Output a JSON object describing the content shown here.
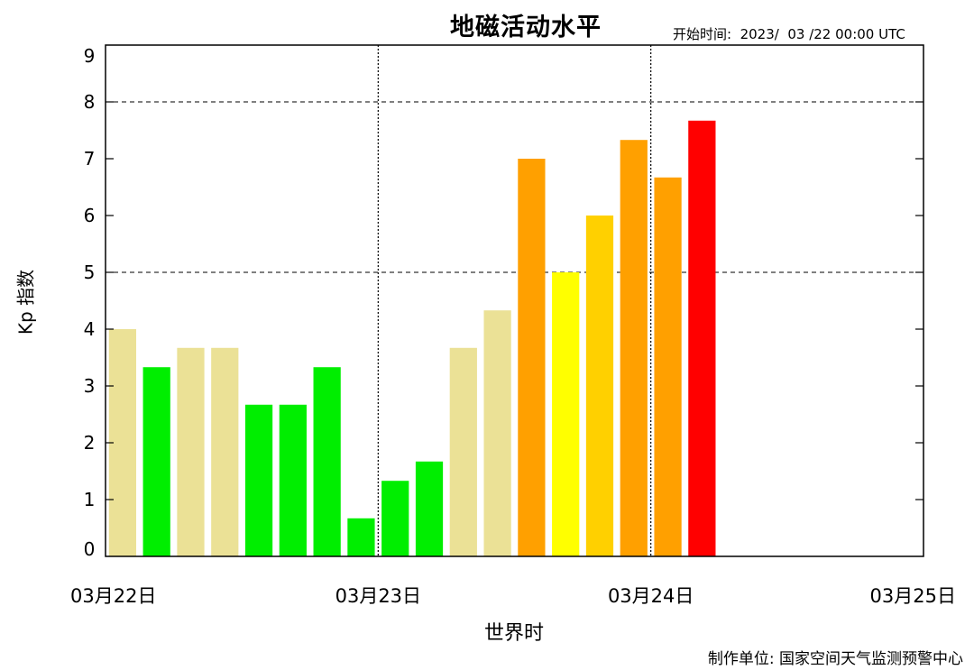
{
  "header": {
    "title": "地磁活动水平",
    "start_time": "开始时间:  2023/  03 /22 00:00 UTC"
  },
  "footer": {
    "credit": "制作单位:  国家空间天气监测预警中心"
  },
  "chart_data": {
    "type": "bar",
    "title": "地磁活动水平",
    "xlabel": "世界时",
    "ylabel": "Kp 指数",
    "ylim": [
      0,
      9
    ],
    "yticks": [
      0,
      1,
      2,
      3,
      4,
      5,
      6,
      7,
      8,
      9
    ],
    "xticks": [
      "03月22日",
      "03月23日",
      "03月24日",
      "03月25日"
    ],
    "xlim_days": [
      0,
      3
    ],
    "dashed_y_lines": [
      5,
      8
    ],
    "dotted_x_lines_days": [
      1,
      2
    ],
    "bar_interval_hours": 3,
    "values": [
      4.0,
      3.33,
      3.67,
      3.67,
      2.67,
      2.67,
      3.33,
      0.67,
      1.33,
      1.67,
      3.67,
      4.33,
      7.0,
      5.0,
      6.0,
      7.33,
      6.67,
      7.67
    ],
    "colors": [
      "#ebe196",
      "#00ee00",
      "#ebe196",
      "#ebe196",
      "#00ee00",
      "#00ee00",
      "#00ee00",
      "#00ee00",
      "#00ee00",
      "#00ee00",
      "#ebe196",
      "#ebe196",
      "#ffa000",
      "#ffff00",
      "#ffd000",
      "#ffa000",
      "#ffa000",
      "#ff0000"
    ]
  }
}
